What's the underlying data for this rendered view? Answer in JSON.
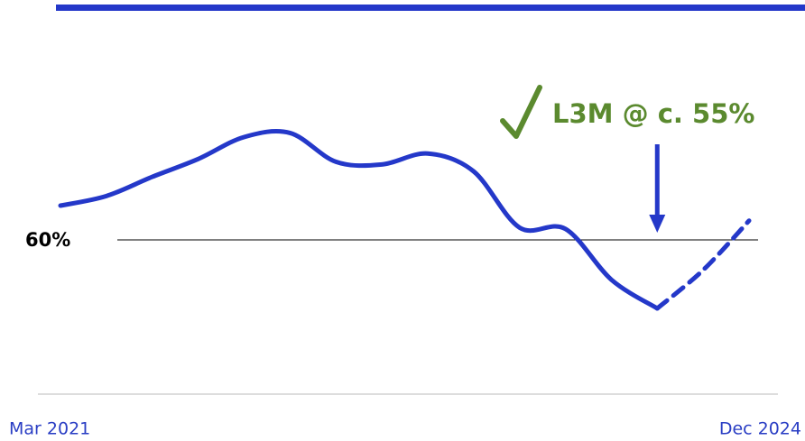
{
  "chart_data": {
    "type": "line",
    "categories": [
      "Mar 2021",
      null,
      null,
      null,
      null,
      null,
      null,
      null,
      null,
      null,
      null,
      null,
      null,
      null,
      null,
      "Dec 2024"
    ],
    "series": [
      {
        "color": "#2438c9",
        "style": "solid",
        "values": [
          62.5,
          63.2,
          64.6,
          65.9,
          67.5,
          67.8,
          65.7,
          65.5,
          66.3,
          65.0,
          60.9,
          60.8,
          57.1,
          55,
          null,
          null
        ]
      },
      {
        "color": "#2438c9",
        "style": "dashed",
        "values": [
          null,
          null,
          null,
          null,
          null,
          null,
          null,
          null,
          null,
          null,
          null,
          null,
          null,
          55,
          57.8,
          61.4
        ]
      }
    ],
    "ylim": [
      50,
      75
    ],
    "reference_line": {
      "value": 60,
      "label": "60%"
    },
    "annotation": {
      "text": "L3M @ c. 55%",
      "index": 13,
      "color": "#5b8a2f"
    }
  }
}
